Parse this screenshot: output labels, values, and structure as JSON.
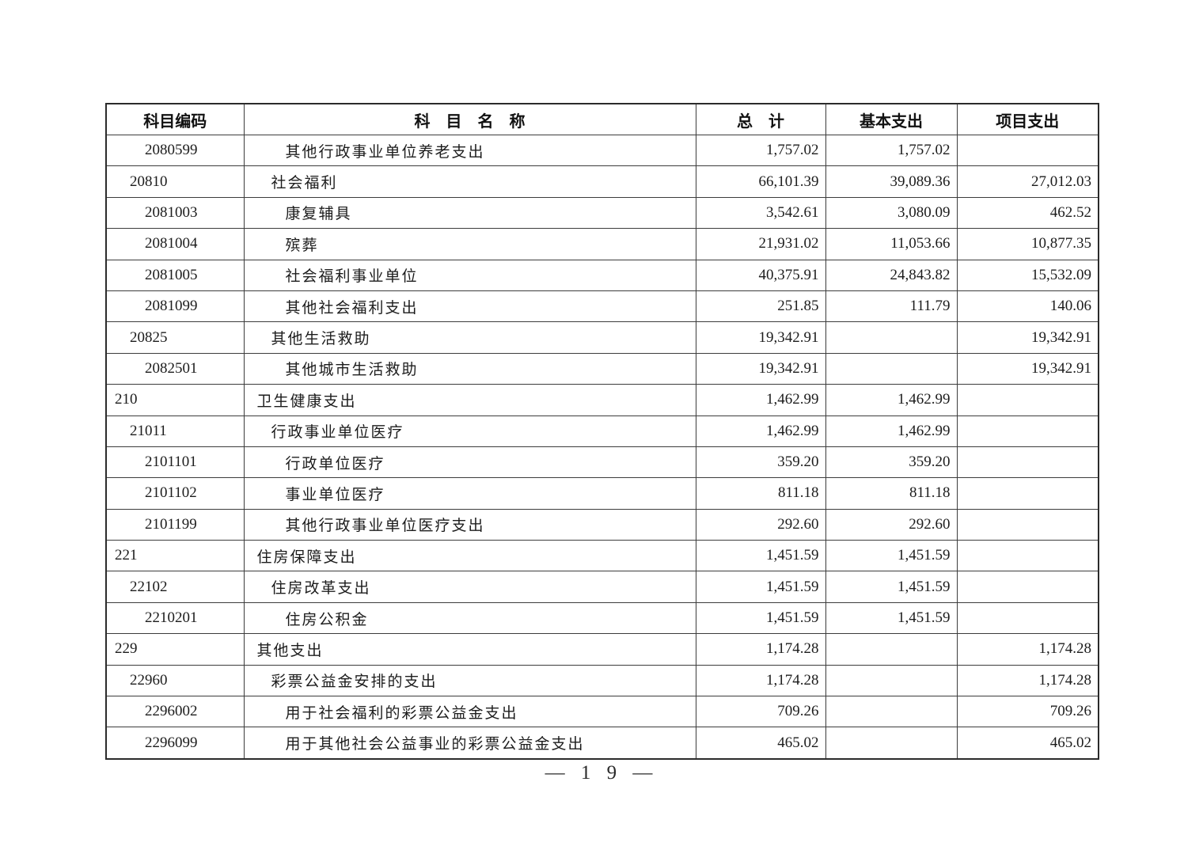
{
  "page": {
    "background": "#ffffff",
    "text_color": "#1c1c1c",
    "border_color": "#2b2b2b",
    "footer_text": "— 1 9 —",
    "page_number": "19"
  },
  "table": {
    "columns": [
      {
        "key": "code",
        "label": "科目编码"
      },
      {
        "key": "name",
        "label": "科　目　名　称"
      },
      {
        "key": "total",
        "label": "总　计"
      },
      {
        "key": "basic",
        "label": "基本支出"
      },
      {
        "key": "project",
        "label": "项目支出"
      }
    ],
    "rows": [
      {
        "code": "2080599",
        "level": 2,
        "name": "其他行政事业单位养老支出",
        "total": "1,757.02",
        "basic": "1,757.02",
        "project": ""
      },
      {
        "code": "20810",
        "level": 1,
        "name": "社会福利",
        "total": "66,101.39",
        "basic": "39,089.36",
        "project": "27,012.03"
      },
      {
        "code": "2081003",
        "level": 2,
        "name": "康复辅具",
        "total": "3,542.61",
        "basic": "3,080.09",
        "project": "462.52"
      },
      {
        "code": "2081004",
        "level": 2,
        "name": "殡葬",
        "total": "21,931.02",
        "basic": "11,053.66",
        "project": "10,877.35"
      },
      {
        "code": "2081005",
        "level": 2,
        "name": "社会福利事业单位",
        "total": "40,375.91",
        "basic": "24,843.82",
        "project": "15,532.09"
      },
      {
        "code": "2081099",
        "level": 2,
        "name": "其他社会福利支出",
        "total": "251.85",
        "basic": "111.79",
        "project": "140.06"
      },
      {
        "code": "20825",
        "level": 1,
        "name": "其他生活救助",
        "total": "19,342.91",
        "basic": "",
        "project": "19,342.91"
      },
      {
        "code": "2082501",
        "level": 2,
        "name": "其他城市生活救助",
        "total": "19,342.91",
        "basic": "",
        "project": "19,342.91"
      },
      {
        "code": "210",
        "level": 0,
        "name": "卫生健康支出",
        "total": "1,462.99",
        "basic": "1,462.99",
        "project": ""
      },
      {
        "code": "21011",
        "level": 1,
        "name": "行政事业单位医疗",
        "total": "1,462.99",
        "basic": "1,462.99",
        "project": ""
      },
      {
        "code": "2101101",
        "level": 2,
        "name": "行政单位医疗",
        "total": "359.20",
        "basic": "359.20",
        "project": ""
      },
      {
        "code": "2101102",
        "level": 2,
        "name": "事业单位医疗",
        "total": "811.18",
        "basic": "811.18",
        "project": ""
      },
      {
        "code": "2101199",
        "level": 2,
        "name": "其他行政事业单位医疗支出",
        "total": "292.60",
        "basic": "292.60",
        "project": ""
      },
      {
        "code": "221",
        "level": 0,
        "name": "住房保障支出",
        "total": "1,451.59",
        "basic": "1,451.59",
        "project": ""
      },
      {
        "code": "22102",
        "level": 1,
        "name": "住房改革支出",
        "total": "1,451.59",
        "basic": "1,451.59",
        "project": ""
      },
      {
        "code": "2210201",
        "level": 2,
        "name": "住房公积金",
        "total": "1,451.59",
        "basic": "1,451.59",
        "project": ""
      },
      {
        "code": "229",
        "level": 0,
        "name": "其他支出",
        "total": "1,174.28",
        "basic": "",
        "project": "1,174.28"
      },
      {
        "code": "22960",
        "level": 1,
        "name": "彩票公益金安排的支出",
        "total": "1,174.28",
        "basic": "",
        "project": "1,174.28"
      },
      {
        "code": "2296002",
        "level": 2,
        "name": "用于社会福利的彩票公益金支出",
        "total": "709.26",
        "basic": "",
        "project": "709.26"
      },
      {
        "code": "2296099",
        "level": 2,
        "name": "用于其他社会公益事业的彩票公益金支出",
        "total": "465.02",
        "basic": "",
        "project": "465.02"
      }
    ]
  }
}
